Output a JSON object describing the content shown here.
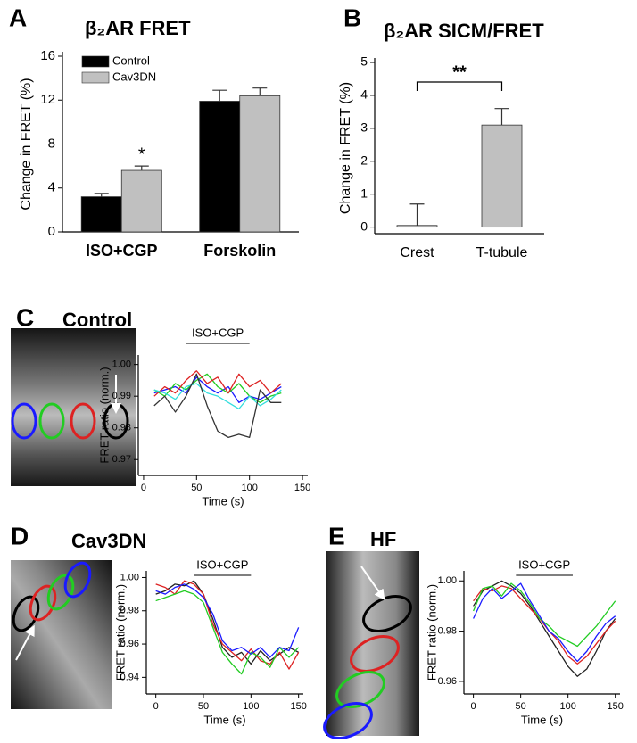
{
  "chart_data": [
    {
      "type": "bar",
      "panel": "A",
      "title": "β₂AR FRET",
      "ylabel": "Change in FRET (%)",
      "categories": [
        "ISO+CGP",
        "Forskolin"
      ],
      "series": [
        {
          "name": "Control",
          "color": "#000000",
          "values": [
            3.2,
            11.9
          ],
          "errors": [
            0.3,
            1.0
          ]
        },
        {
          "name": "Cav3DN",
          "color": "#c0c0c0",
          "values": [
            5.6,
            12.4
          ],
          "errors": [
            0.4,
            0.7
          ]
        }
      ],
      "ylim": [
        0,
        16
      ],
      "yticks": [
        0,
        4,
        8,
        12,
        16
      ],
      "annotation": "*"
    },
    {
      "type": "bar",
      "panel": "B",
      "title": "β₂AR SICM/FRET",
      "ylabel": "Change in FRET (%)",
      "categories": [
        "Crest",
        "T-tubule"
      ],
      "color": "#c0c0c0",
      "values": [
        0.05,
        3.1
      ],
      "errors": [
        0.65,
        0.5
      ],
      "ylim": [
        -0.2,
        5
      ],
      "yticks": [
        0,
        1,
        2,
        3,
        4,
        5
      ],
      "annotation": "**"
    },
    {
      "type": "line",
      "panel": "C",
      "title": "Control",
      "ylabel": "FRET ratio (norm.)",
      "xlabel": "Time (s)",
      "annotation": "ISO+CGP",
      "annotation_x": [
        40,
        100
      ],
      "x": [
        10,
        20,
        30,
        40,
        50,
        60,
        70,
        80,
        90,
        100,
        110,
        120,
        130
      ],
      "series": [
        {
          "color": "#1a1aff",
          "values": [
            0.991,
            0.992,
            0.993,
            0.991,
            0.996,
            0.993,
            0.991,
            0.993,
            0.988,
            0.99,
            0.989,
            0.991,
            0.993
          ]
        },
        {
          "color": "#22cc22",
          "values": [
            0.992,
            0.99,
            0.994,
            0.992,
            0.995,
            0.997,
            0.993,
            0.991,
            0.994,
            0.99,
            0.988,
            0.99,
            0.991
          ]
        },
        {
          "color": "#dd2222",
          "values": [
            0.99,
            0.993,
            0.991,
            0.995,
            0.998,
            0.994,
            0.996,
            0.991,
            0.997,
            0.993,
            0.995,
            0.991,
            0.994
          ]
        },
        {
          "color": "#33dddd",
          "values": [
            0.992,
            0.991,
            0.989,
            0.993,
            0.994,
            0.991,
            0.99,
            0.988,
            0.986,
            0.99,
            0.987,
            0.989,
            0.992
          ]
        },
        {
          "color": "#333333",
          "values": [
            0.987,
            0.99,
            0.985,
            0.99,
            0.997,
            0.987,
            0.979,
            0.977,
            0.978,
            0.977,
            0.992,
            0.988,
            0.988
          ]
        }
      ],
      "xlim": [
        -5,
        155
      ],
      "xticks": [
        0,
        50,
        100,
        150
      ],
      "ylim": [
        0.965,
        1.003
      ],
      "yticks": [
        0.97,
        0.98,
        0.99,
        {
          "value": 1,
          "label": "1.00"
        }
      ]
    },
    {
      "type": "line",
      "panel": "D",
      "title": "Cav3DN",
      "ylabel": "FRET ratio (norm.)",
      "xlabel": "Time (s)",
      "annotation": "ISO+CGP",
      "annotation_x": [
        40,
        100
      ],
      "x": [
        0,
        10,
        20,
        30,
        40,
        50,
        60,
        70,
        80,
        90,
        100,
        110,
        120,
        130,
        140,
        150
      ],
      "series": [
        {
          "color": "#222222",
          "values": [
            0.99,
            0.992,
            0.996,
            0.995,
            0.998,
            0.99,
            0.975,
            0.958,
            0.952,
            0.955,
            0.948,
            0.956,
            0.95,
            0.954,
            0.958,
            0.955
          ]
        },
        {
          "color": "#dd2222",
          "values": [
            0.996,
            0.994,
            0.99,
            0.998,
            0.996,
            0.99,
            0.972,
            0.96,
            0.955,
            0.95,
            0.957,
            0.95,
            0.948,
            0.955,
            0.945,
            0.955
          ]
        },
        {
          "color": "#22cc22",
          "values": [
            0.986,
            0.988,
            0.99,
            0.992,
            0.99,
            0.985,
            0.97,
            0.955,
            0.948,
            0.942,
            0.955,
            0.952,
            0.946,
            0.958,
            0.952,
            0.958
          ]
        },
        {
          "color": "#1a1aff",
          "values": [
            0.992,
            0.99,
            0.994,
            0.996,
            0.993,
            0.988,
            0.978,
            0.962,
            0.956,
            0.958,
            0.954,
            0.958,
            0.952,
            0.958,
            0.956,
            0.97
          ]
        }
      ],
      "xlim": [
        -10,
        155
      ],
      "xticks": [
        0,
        50,
        100,
        150
      ],
      "ylim": [
        0.93,
        1.004
      ],
      "yticks": [
        0.94,
        0.96,
        0.98,
        {
          "value": 1,
          "label": "1.00"
        }
      ]
    },
    {
      "type": "line",
      "panel": "E",
      "title": "HF",
      "ylabel": "FRET ratio (norm.)",
      "xlabel": "Time (s)",
      "annotation": "ISO+CGP",
      "annotation_x": [
        45,
        105
      ],
      "x": [
        0,
        10,
        20,
        30,
        40,
        50,
        60,
        70,
        80,
        90,
        100,
        110,
        120,
        130,
        140,
        150
      ],
      "series": [
        {
          "color": "#222222",
          "values": [
            0.99,
            0.996,
            0.998,
            1.0,
            0.998,
            0.995,
            0.99,
            0.984,
            0.978,
            0.972,
            0.966,
            0.962,
            0.965,
            0.972,
            0.98,
            0.985
          ]
        },
        {
          "color": "#dd2222",
          "values": [
            0.992,
            0.997,
            0.996,
            0.998,
            0.997,
            0.993,
            0.989,
            0.985,
            0.98,
            0.976,
            0.97,
            0.967,
            0.97,
            0.975,
            0.98,
            0.984
          ]
        },
        {
          "color": "#22cc22",
          "values": [
            0.988,
            0.997,
            0.998,
            0.994,
            0.999,
            0.996,
            0.991,
            0.985,
            0.982,
            0.978,
            0.976,
            0.974,
            0.978,
            0.982,
            0.987,
            0.992
          ]
        },
        {
          "color": "#1a1aff",
          "values": [
            0.985,
            0.993,
            0.997,
            0.993,
            0.996,
            0.999,
            0.992,
            0.986,
            0.98,
            0.977,
            0.972,
            0.968,
            0.972,
            0.978,
            0.983,
            0.986
          ]
        }
      ],
      "xlim": [
        -10,
        155
      ],
      "xticks": [
        0,
        50,
        100,
        150
      ],
      "ylim": [
        0.955,
        1.004
      ],
      "yticks": [
        0.96,
        0.98,
        {
          "value": 1,
          "label": "1.00"
        }
      ]
    }
  ]
}
